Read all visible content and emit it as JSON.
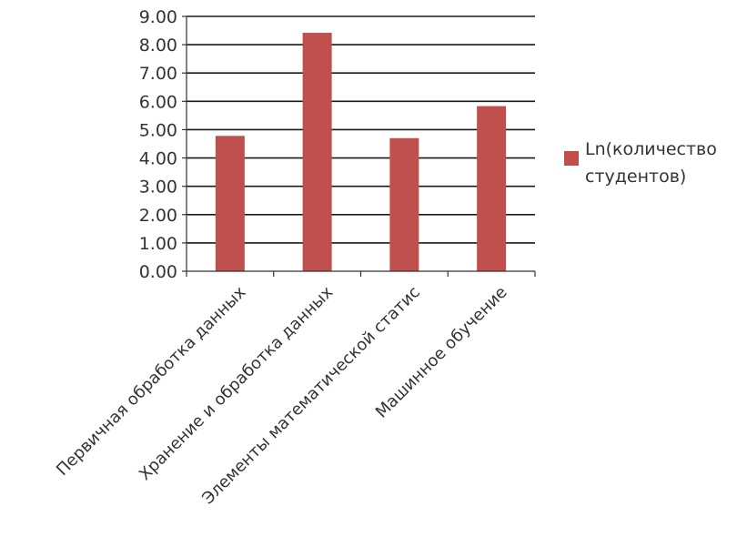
{
  "chart_data": {
    "type": "bar",
    "categories": [
      "Первичная обработка данных",
      "Хранение и обработка данных",
      "Элементы математической статис",
      "Машинное обучение"
    ],
    "series": [
      {
        "name": "Ln(количество студентов)",
        "legend_lines": [
          "Ln(количество",
          "студентов)"
        ],
        "values": [
          4.78,
          8.42,
          4.7,
          5.83
        ],
        "color": "#c0504d"
      }
    ],
    "ylim": [
      0,
      9
    ],
    "yticks": [
      "0.00",
      "1.00",
      "2.00",
      "3.00",
      "4.00",
      "5.00",
      "6.00",
      "7.00",
      "8.00",
      "9.00"
    ],
    "grid": true,
    "legend_position": "right"
  }
}
